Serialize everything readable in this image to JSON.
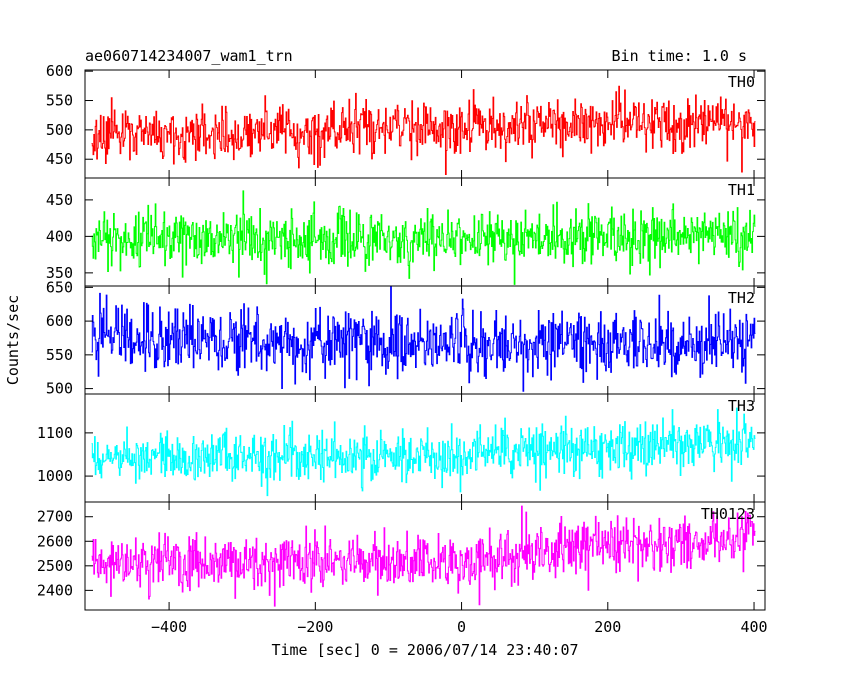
{
  "header": {
    "title": "ae060714234007_wam1_trn",
    "bin_time": "Bin time: 1.0 s"
  },
  "chart_data": {
    "type": "line",
    "xlabel": "Time [sec] 0 = 2006/07/14 23:40:07",
    "ylabel": "Counts/sec",
    "xlim": [
      -515,
      415
    ],
    "x_ticks": [
      -400,
      -200,
      0,
      200,
      400
    ],
    "x_tick_labels": [
      "−400",
      "−200",
      "0",
      "200",
      "400"
    ],
    "x_range": [
      -506,
      401
    ],
    "bin_seconds": 1.0,
    "panels": [
      {
        "label": "TH0",
        "color": "#ff0000",
        "ylim": [
          418,
          602
        ],
        "yticks": [
          450,
          500,
          550,
          600
        ],
        "trend": [
          [
            -506,
            490
          ],
          [
            -300,
            495
          ],
          [
            0,
            505
          ],
          [
            200,
            510
          ],
          [
            401,
            512
          ]
        ],
        "noise_sd": 23
      },
      {
        "label": "TH1",
        "color": "#00ff00",
        "ylim": [
          332,
          480
        ],
        "yticks": [
          350,
          400,
          450
        ],
        "trend": [
          [
            -506,
            395
          ],
          [
            0,
            398
          ],
          [
            401,
            402
          ]
        ],
        "noise_sd": 20
      },
      {
        "label": "TH2",
        "color": "#0000ff",
        "ylim": [
          492,
          652
        ],
        "yticks": [
          500,
          550,
          600,
          650
        ],
        "trend": [
          [
            -506,
            575
          ],
          [
            0,
            565
          ],
          [
            401,
            570
          ]
        ],
        "noise_sd": 25
      },
      {
        "label": "TH3",
        "color": "#00ffff",
        "ylim": [
          940,
          1190
        ],
        "yticks": [
          1000,
          1100
        ],
        "trend": [
          [
            -506,
            1045
          ],
          [
            0,
            1050
          ],
          [
            200,
            1065
          ],
          [
            401,
            1080
          ]
        ],
        "noise_sd": 30
      },
      {
        "label": "TH0123",
        "color": "#ff00ff",
        "ylim": [
          2320,
          2760
        ],
        "yticks": [
          2400,
          2500,
          2600,
          2700
        ],
        "trend": [
          [
            -506,
            2510
          ],
          [
            0,
            2520
          ],
          [
            200,
            2580
          ],
          [
            401,
            2620
          ]
        ],
        "noise_sd": 55
      }
    ]
  }
}
